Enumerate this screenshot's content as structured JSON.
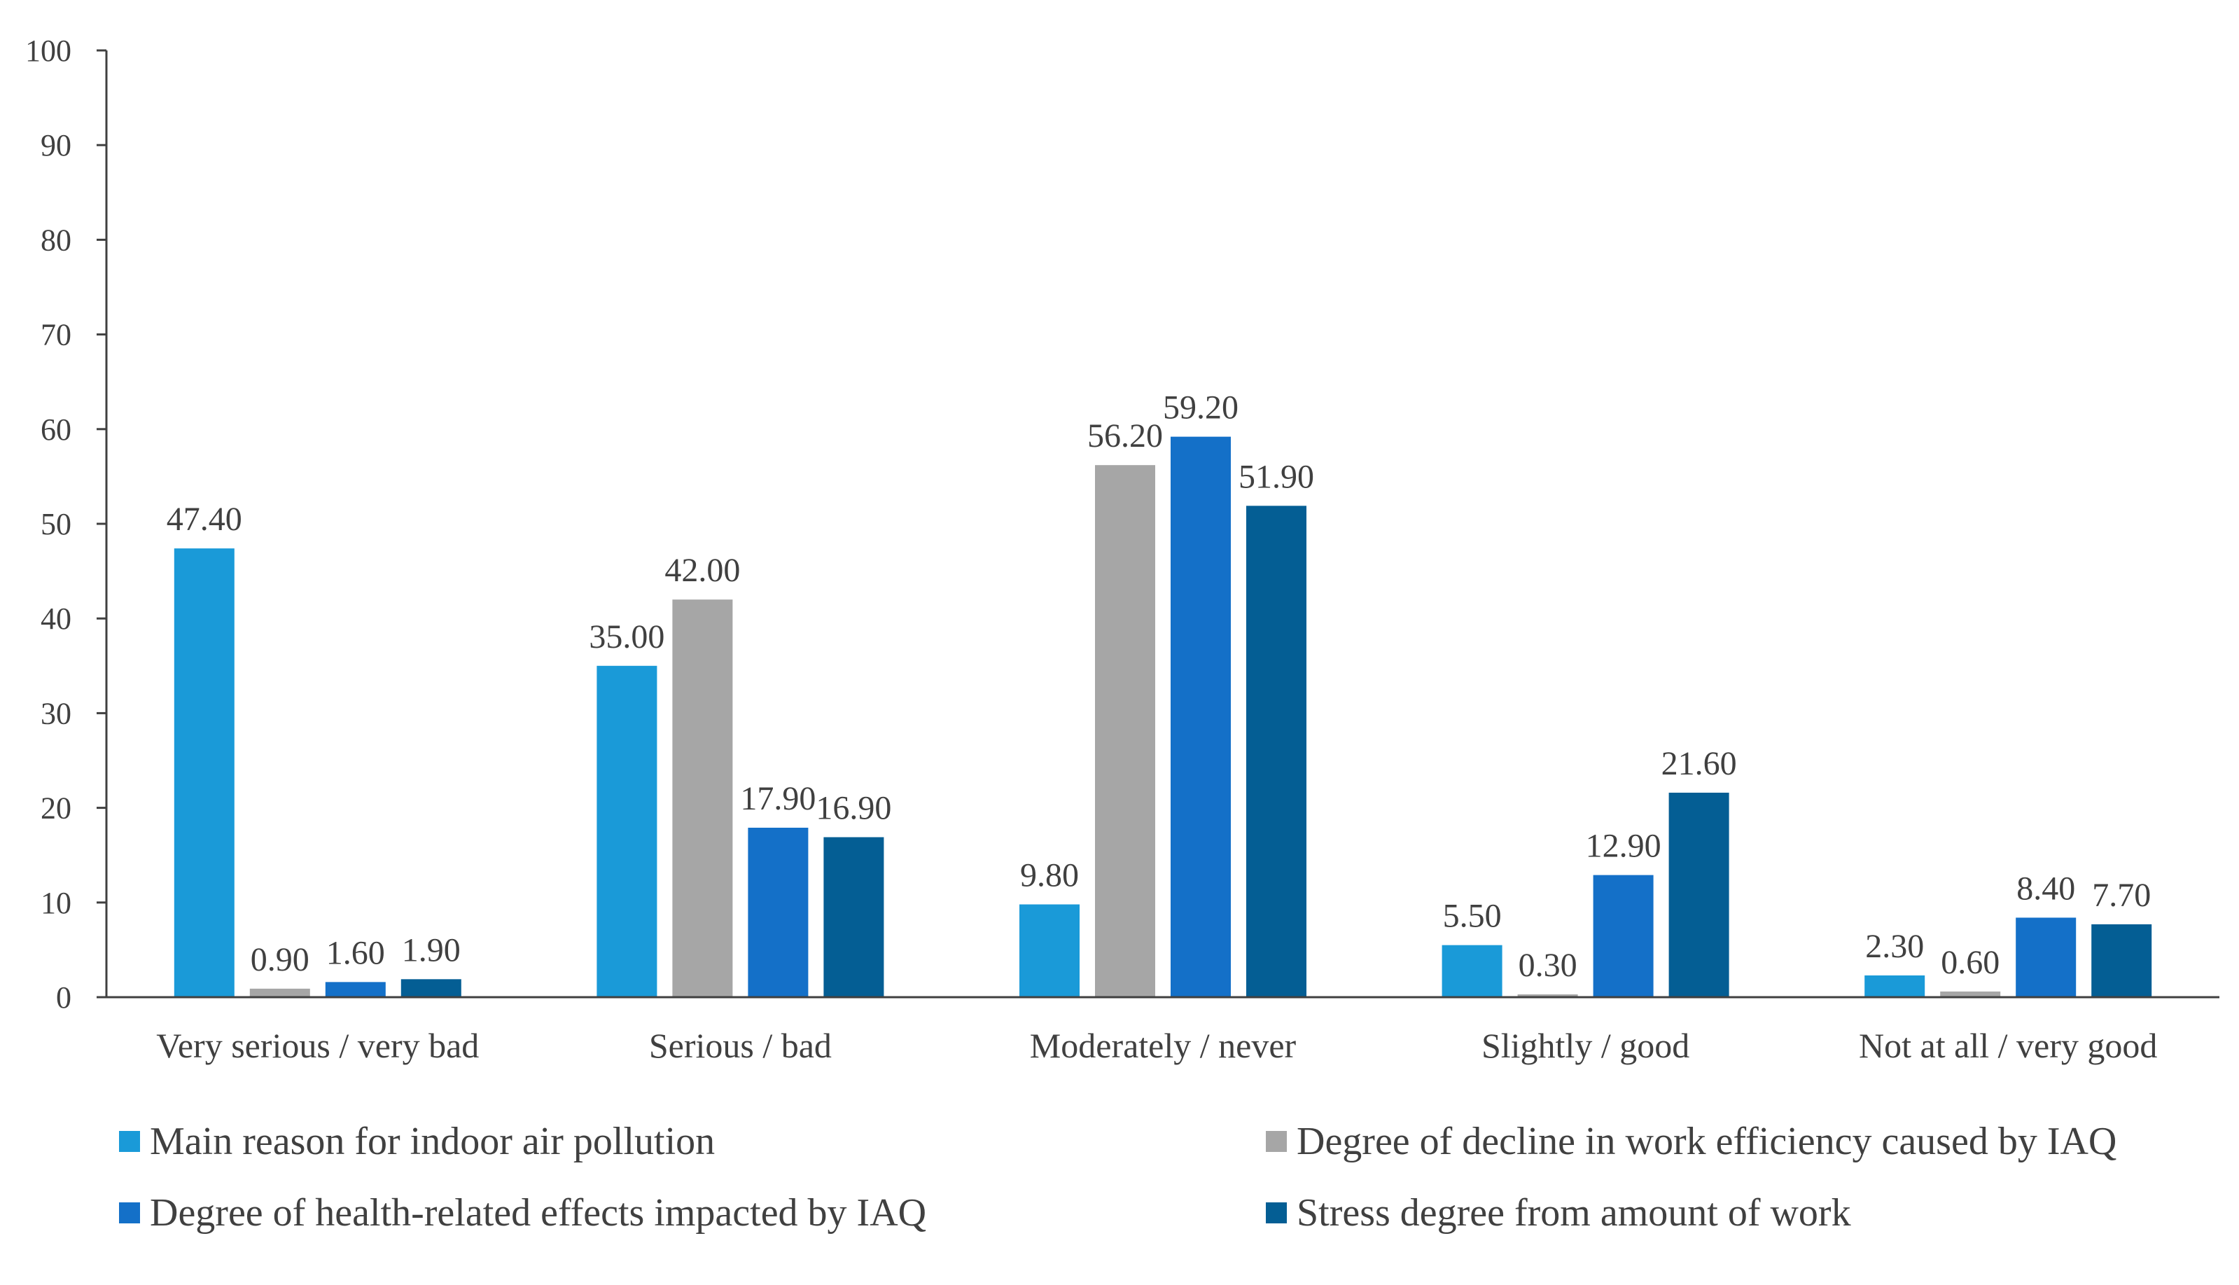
{
  "chart_data": {
    "type": "bar",
    "title": "",
    "xlabel": "",
    "ylabel": "",
    "ylim": [
      0,
      100
    ],
    "yticks": [
      0,
      10,
      20,
      30,
      40,
      50,
      60,
      70,
      80,
      90,
      100
    ],
    "grid": false,
    "legend_position": "bottom",
    "categories": [
      "Very serious / very bad",
      "Serious / bad",
      "Moderately / never",
      "Slightly / good",
      "Not at all / very good"
    ],
    "series": [
      {
        "name": "Main reason for indoor air pollution",
        "color": "#1a9ad8",
        "values": [
          47.4,
          35.0,
          9.8,
          5.5,
          2.3
        ],
        "labels": [
          "47.40",
          "35.00",
          "9.80",
          "5.50",
          "2.30"
        ]
      },
      {
        "name": "Degree of decline in work efficiency caused by IAQ",
        "color": "#a6a6a6",
        "values": [
          0.9,
          42.0,
          56.2,
          0.3,
          0.6
        ],
        "labels": [
          "0.90",
          "42.00",
          "56.20",
          "0.30",
          "0.60"
        ]
      },
      {
        "name": "Degree of health-related effects impacted by IAQ",
        "color": "#1470c8",
        "values": [
          1.6,
          17.9,
          59.2,
          12.9,
          8.4
        ],
        "labels": [
          "1.60",
          "17.90",
          "59.20",
          "12.90",
          "8.40"
        ]
      },
      {
        "name": "Stress degree from amount of work",
        "color": "#045e94",
        "values": [
          1.9,
          16.9,
          51.9,
          21.6,
          7.7
        ],
        "labels": [
          "1.90",
          "16.90",
          "51.90",
          "21.60",
          "7.70"
        ]
      }
    ]
  }
}
